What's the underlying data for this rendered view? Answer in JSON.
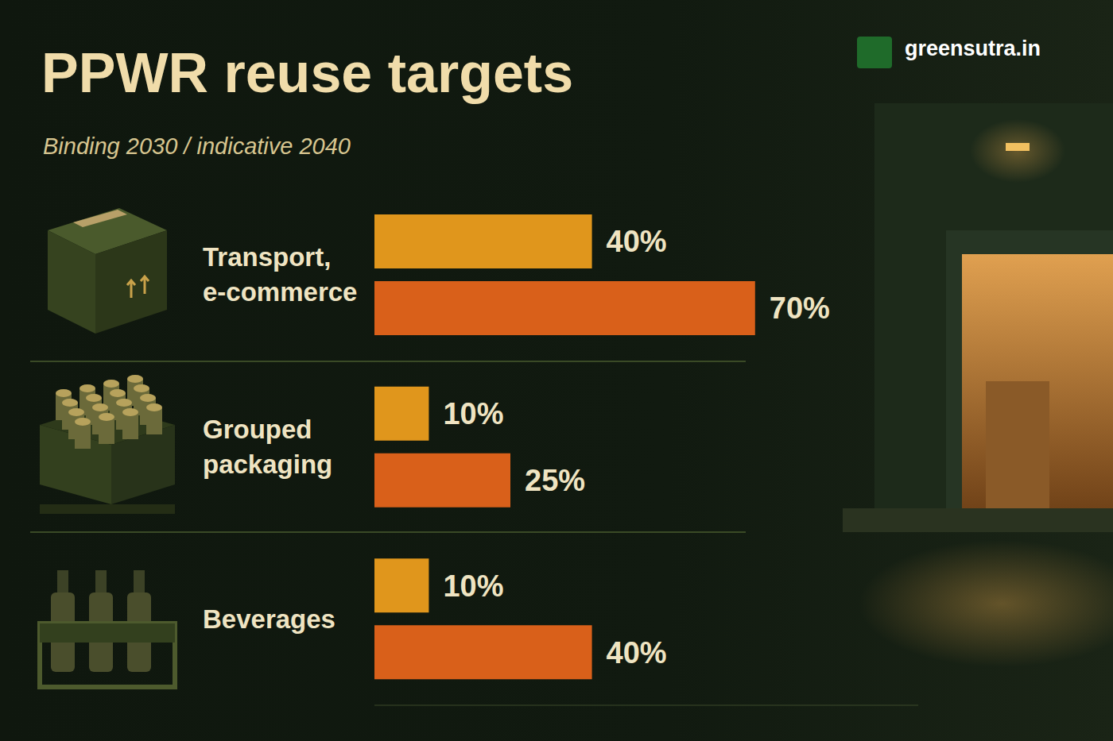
{
  "chart_data": {
    "type": "bar",
    "title": "PPWR reuse targets",
    "subtitle": "Binding 2030 / indicative 2040",
    "orientation": "horizontal",
    "categories": [
      "Transport, e-commerce",
      "Grouped packaging",
      "Beverages"
    ],
    "series": [
      {
        "name": "2030",
        "color": "#e0961c",
        "values": [
          40,
          10,
          10
        ],
        "value_labels": [
          "40%",
          "10%",
          "10%"
        ]
      },
      {
        "name": "2040",
        "color": "#d9601a",
        "values": [
          70,
          25,
          40
        ],
        "value_labels": [
          "70%",
          "25%",
          "40%"
        ]
      }
    ],
    "xlim": [
      0,
      100
    ],
    "grid": false,
    "data_labels": true,
    "tick_labels": "y",
    "stacked": false
  },
  "brand": "greensutra.in"
}
